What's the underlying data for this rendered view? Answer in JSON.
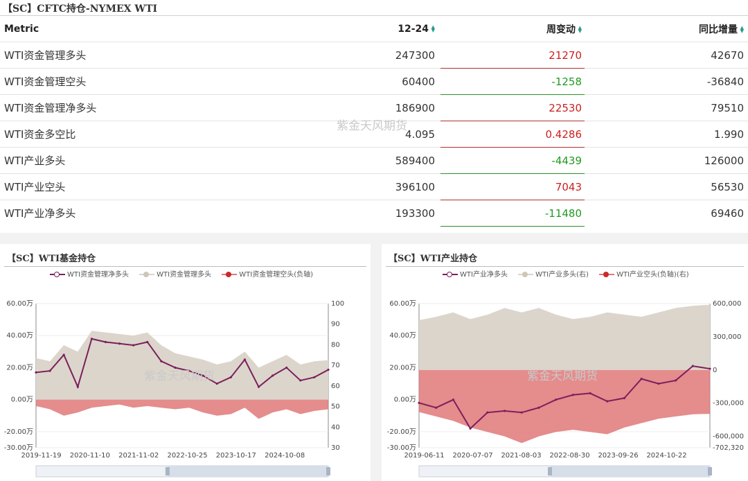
{
  "table": {
    "title": "【SC】CFTC持仓-NYMEX WTI",
    "headers": {
      "metric": "Metric",
      "date": "12-24",
      "change": "周变动",
      "yoy": "同比增量"
    },
    "rows": [
      {
        "metric": "WTI资金管理多头",
        "value": "247300",
        "change": "21270",
        "change_dir": "pos",
        "yoy": "42670"
      },
      {
        "metric": "WTI资金管理空头",
        "value": "60400",
        "change": "-1258",
        "change_dir": "neg",
        "yoy": "-36840"
      },
      {
        "metric": "WTI资金管理净多头",
        "value": "186900",
        "change": "22530",
        "change_dir": "pos",
        "yoy": "79510"
      },
      {
        "metric": "WTI资金多空比",
        "value": "4.095",
        "change": "0.4286",
        "change_dir": "pos",
        "yoy": "1.990"
      },
      {
        "metric": "WTI产业多头",
        "value": "589400",
        "change": "-4439",
        "change_dir": "neg",
        "yoy": "126000"
      },
      {
        "metric": "WTI产业空头",
        "value": "396100",
        "change": "7043",
        "change_dir": "pos",
        "yoy": "56530"
      },
      {
        "metric": "WTI产业净多头",
        "value": "193300",
        "change": "-11480",
        "change_dir": "neg",
        "yoy": "69460"
      }
    ],
    "watermark": "紫金天风期货"
  },
  "chart_data": [
    {
      "type": "area",
      "title": "【SC】WTI基金持仓",
      "watermark": "紫金天风期货",
      "legend": [
        "WTI资金管理净多头",
        "WTI资金管理多头",
        "WTI资金管理空头(负轴)"
      ],
      "legend_placement": "top",
      "colors": {
        "net": "#7a1f5c",
        "long": "#dcd5cb",
        "short": "#e07878"
      },
      "y_left": {
        "ticks": [
          "60.00万",
          "40.00万",
          "20.00万",
          "0.00万",
          "-20.00万",
          "-30.00万"
        ],
        "range": [
          -30,
          60
        ],
        "unit": "万"
      },
      "y_right": {
        "ticks": [
          "100",
          "90",
          "80",
          "70",
          "60",
          "50",
          "40",
          "30"
        ],
        "range": [
          30,
          100
        ]
      },
      "x_ticks": [
        "2019-11-19",
        "2020-11-10",
        "2021-11-02",
        "2022-10-25",
        "2023-10-17",
        "2024-10-08"
      ],
      "x": [
        "2019-11",
        "2020-02",
        "2020-05",
        "2020-08",
        "2020-11",
        "2021-02",
        "2021-05",
        "2021-08",
        "2021-11",
        "2022-02",
        "2022-05",
        "2022-08",
        "2022-11",
        "2023-02",
        "2023-05",
        "2023-08",
        "2023-11",
        "2024-02",
        "2024-05",
        "2024-08",
        "2024-11",
        "2024-12"
      ],
      "series": [
        {
          "name": "WTI资金管理净多头",
          "values": [
            17,
            18,
            28,
            8,
            38,
            36,
            35,
            34,
            36,
            24,
            20,
            18,
            15,
            10,
            14,
            25,
            8,
            15,
            20,
            12,
            14,
            18.7
          ]
        },
        {
          "name": "WTI资金管理多头",
          "values": [
            26,
            24,
            34,
            30,
            43,
            42,
            41,
            40,
            42,
            34,
            29,
            27,
            25,
            22,
            24,
            30,
            20,
            24,
            28,
            22,
            24,
            24.7
          ]
        },
        {
          "name": "WTI资金管理空头(负轴)",
          "values": [
            -4,
            -6,
            -10,
            -8,
            -5,
            -4,
            -3,
            -5,
            -4,
            -5,
            -6,
            -5,
            -8,
            -10,
            -9,
            -5,
            -12,
            -8,
            -6,
            -9,
            -7,
            -6
          ]
        }
      ]
    },
    {
      "type": "area",
      "title": "【SC】WTI产业持仓",
      "watermark": "紫金天风期货",
      "legend": [
        "WTI产业净多头",
        "WTI产业多头(右)",
        "WTI产业空头(负轴)(右)"
      ],
      "legend_placement": "top",
      "colors": {
        "net": "#7a1f5c",
        "long": "#dcd5cb",
        "short": "#e07878"
      },
      "y_left": {
        "ticks": [
          "60.00万",
          "40.00万",
          "20.00万",
          "0.00万",
          "-20.00万",
          "-30.00万"
        ],
        "range": [
          -30,
          60
        ],
        "unit": "万"
      },
      "y_right": {
        "ticks": [
          "600,000",
          "300,000",
          "0",
          "-300,000",
          "-600,000",
          "-702,320"
        ],
        "range": [
          -702320,
          600000
        ]
      },
      "x_ticks": [
        "2019-06-11",
        "2020-07-07",
        "2021-08-03",
        "2022-08-30",
        "2023-09-26",
        "2024-10-22"
      ],
      "x": [
        "2019-06",
        "2019-10",
        "2020-02",
        "2020-06",
        "2020-10",
        "2021-02",
        "2021-06",
        "2021-10",
        "2022-02",
        "2022-06",
        "2022-10",
        "2023-02",
        "2023-06",
        "2023-10",
        "2024-02",
        "2024-06",
        "2024-10",
        "2024-12"
      ],
      "series": [
        {
          "name": "WTI产业净多头",
          "values": [
            -2,
            -5,
            0,
            -18,
            -8,
            -7,
            -8,
            -5,
            0,
            3,
            4,
            -1,
            1,
            13,
            10,
            12,
            21,
            19.3
          ]
        },
        {
          "name": "WTI产业多头(右)",
          "values": [
            450000,
            480000,
            520000,
            460000,
            500000,
            560000,
            520000,
            560000,
            500000,
            460000,
            480000,
            520000,
            500000,
            480000,
            520000,
            560000,
            580000,
            589400
          ]
        },
        {
          "name": "WTI产业空头(负轴)(右)",
          "values": [
            -380000,
            -420000,
            -460000,
            -520000,
            -560000,
            -600000,
            -660000,
            -600000,
            -560000,
            -540000,
            -560000,
            -580000,
            -520000,
            -480000,
            -440000,
            -420000,
            -400000,
            -396100
          ]
        }
      ]
    }
  ]
}
